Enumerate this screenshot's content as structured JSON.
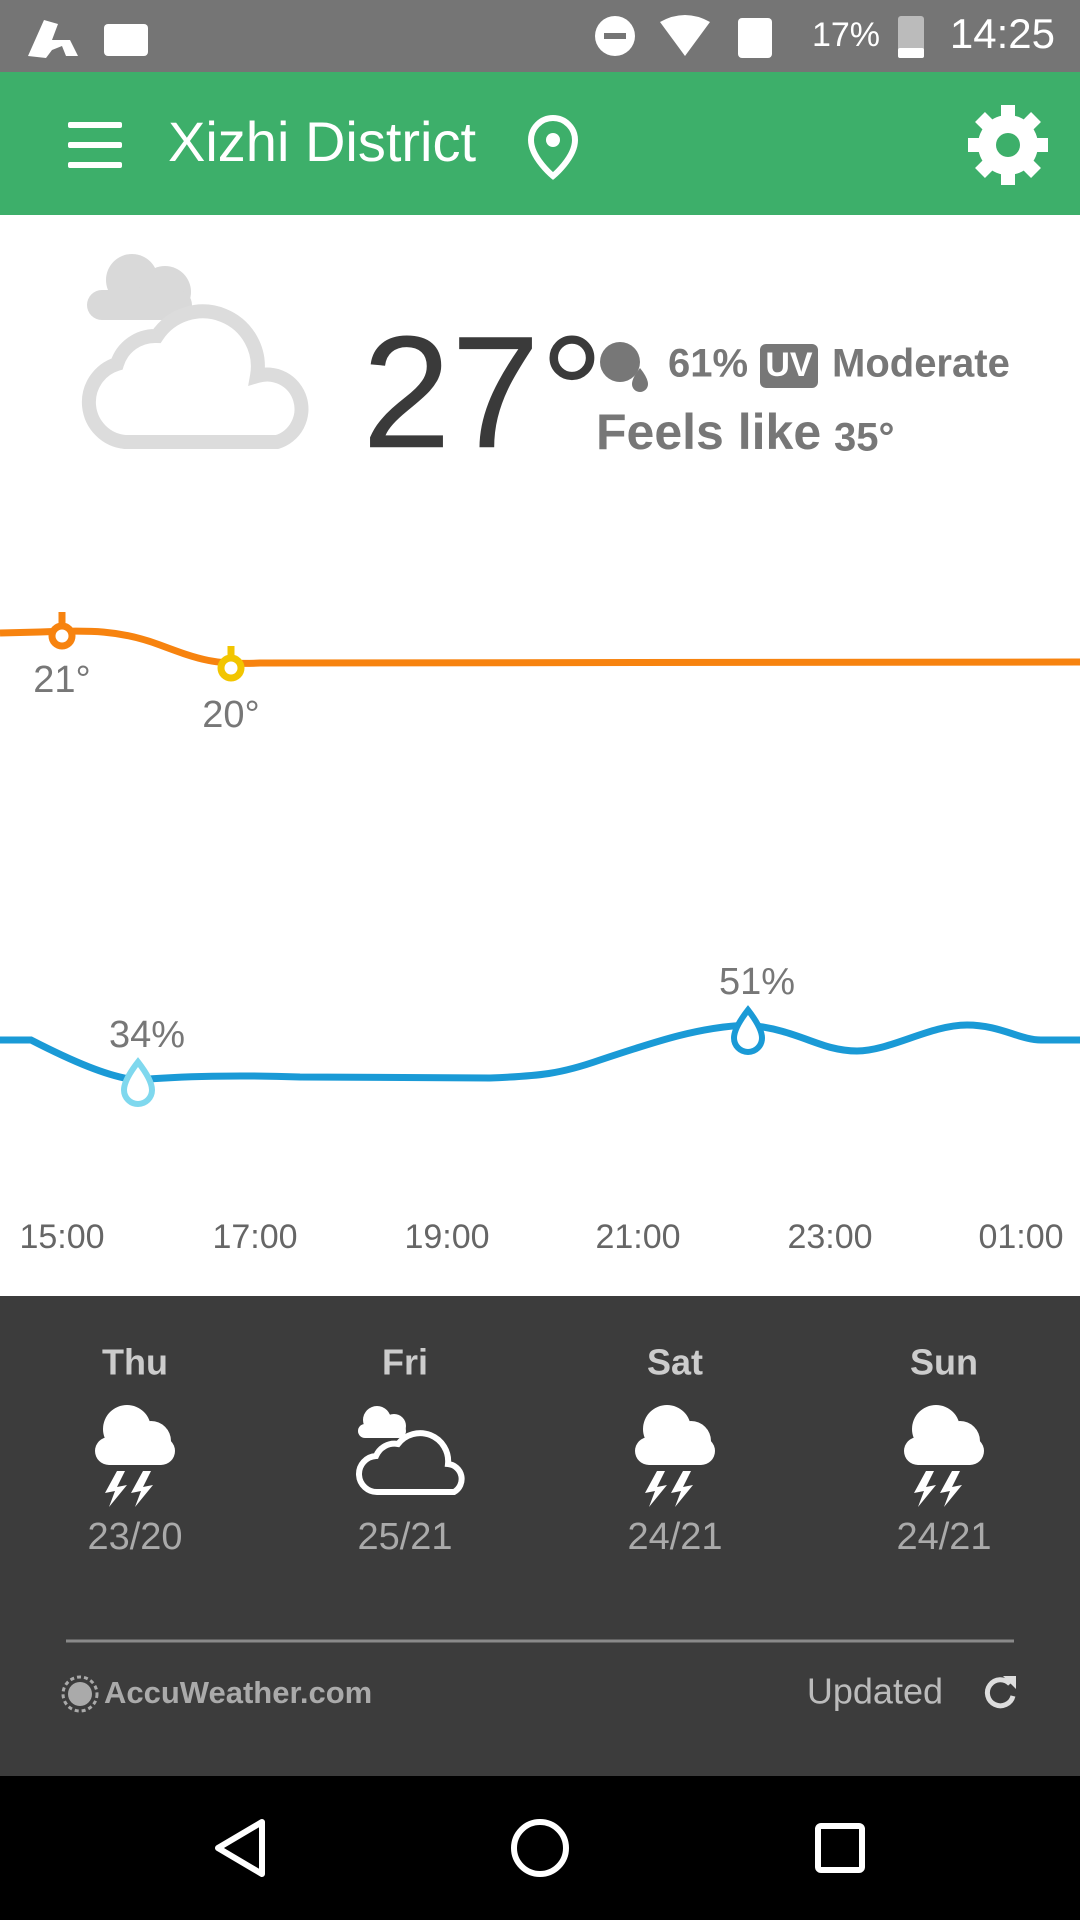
{
  "status_bar": {
    "battery": "17%",
    "time": "14:25"
  },
  "app_bar": {
    "title": "Xizhi District"
  },
  "current": {
    "temperature": "27°",
    "humidity": "61%",
    "uv_badge": "UV",
    "uv": "Moderate",
    "feels_like_label": "Feels like",
    "feels_like": "35°"
  },
  "hourly": {
    "temperature_labels": [
      "21°",
      "20°"
    ],
    "humidity_labels": [
      "34%",
      "51%"
    ],
    "times": [
      "15:00",
      "17:00",
      "19:00",
      "21:00",
      "23:00",
      "01:00"
    ]
  },
  "daily": [
    {
      "day": "Thu",
      "temps": "23/20"
    },
    {
      "day": "Fri",
      "temps": "25/21"
    },
    {
      "day": "Sat",
      "temps": "24/21"
    },
    {
      "day": "Sun",
      "temps": "24/21"
    }
  ],
  "footer": {
    "source": "AccuWeather.com",
    "updated": "Updated"
  }
}
